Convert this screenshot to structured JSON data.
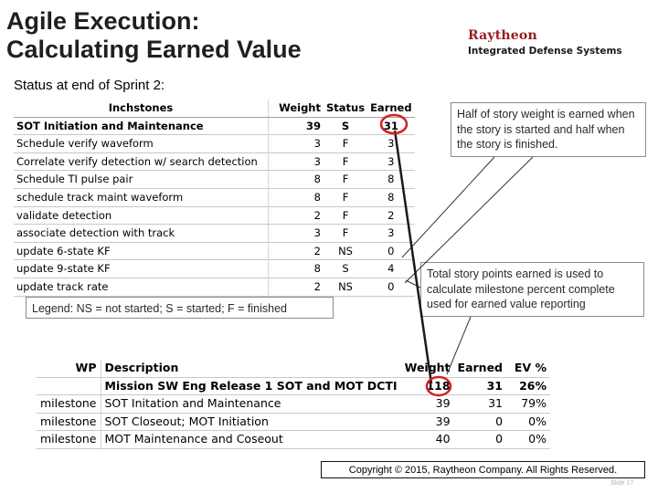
{
  "title": {
    "line1": "Agile Execution:",
    "line2": "Calculating Earned Value"
  },
  "logo": {
    "name": "Raytheon",
    "subtitle": "Integrated Defense Systems"
  },
  "status_heading": "Status at end of Sprint 2:",
  "inchstones": {
    "headers": {
      "name": "Inchstones",
      "weight": "Weight",
      "status": "Status",
      "earned": "Earned"
    },
    "rows": [
      {
        "name": "SOT Initiation and Maintenance",
        "weight": "39",
        "status": "S",
        "earned": "31"
      },
      {
        "name": "Schedule verify waveform",
        "weight": "3",
        "status": "F",
        "earned": "3"
      },
      {
        "name": "Correlate verify detection w/ search detection",
        "weight": "3",
        "status": "F",
        "earned": "3"
      },
      {
        "name": "Schedule TI pulse pair",
        "weight": "8",
        "status": "F",
        "earned": "8"
      },
      {
        "name": "schedule track maint waveform",
        "weight": "8",
        "status": "F",
        "earned": "8"
      },
      {
        "name": "validate detection",
        "weight": "2",
        "status": "F",
        "earned": "2"
      },
      {
        "name": "associate detection with track",
        "weight": "3",
        "status": "F",
        "earned": "3"
      },
      {
        "name": "update 6-state KF",
        "weight": "2",
        "status": "NS",
        "earned": "0"
      },
      {
        "name": "update 9-state KF",
        "weight": "8",
        "status": "S",
        "earned": "4"
      },
      {
        "name": "update track rate",
        "weight": "2",
        "status": "NS",
        "earned": "0"
      }
    ]
  },
  "callouts": {
    "half_weight": "Half of story weight is earned when the story is started and half when the story is finished.",
    "total_points": "Total story points earned is used to calculate milestone percent complete used for earned value reporting"
  },
  "legend": "Legend:   NS = not started; S = started; F = finished",
  "milestones": {
    "headers": {
      "wp": "WP",
      "description": "Description",
      "weight": "Weight",
      "earned": "Earned",
      "ev": "EV %"
    },
    "summary": {
      "description": "Mission SW Eng Release 1 SOT and MOT DCTI",
      "weight": "118",
      "earned": "31",
      "ev": "26%"
    },
    "rows": [
      {
        "wp": "milestone",
        "description": "SOT Initation and Maintenance",
        "weight": "39",
        "earned": "31",
        "ev": "79%"
      },
      {
        "wp": "milestone",
        "description": "SOT Closeout; MOT Initiation",
        "weight": "39",
        "earned": "0",
        "ev": "0%"
      },
      {
        "wp": "milestone",
        "description": "MOT Maintenance and Coseout",
        "weight": "40",
        "earned": "0",
        "ev": "0%"
      }
    ]
  },
  "copyright": "Copyright © 2015, Raytheon Company. All Rights Reserved.",
  "slide_number": "Slide 17",
  "colors": {
    "highlight_circle": "#d42020",
    "logo_red": "#9a1b21"
  }
}
